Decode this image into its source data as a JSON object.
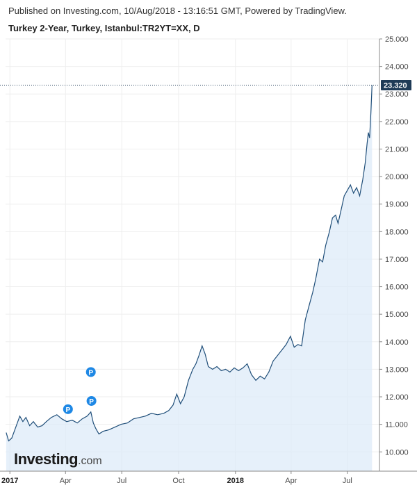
{
  "header": {
    "published": "Published on Investing.com, 10/Aug/2018 - 13:16:51 GMT, Powered by TradingView.",
    "symbol": "Turkey 2-Year, Turkey, Istanbul:TR2YT=XX, D"
  },
  "logo": {
    "main": "Investing",
    "suffix": ".com"
  },
  "colors": {
    "line": "#1f4e79",
    "fill": "#dbeaf8",
    "badge": "#1e88e5",
    "grid": "#eeeeee",
    "price_label_bg": "#1f3b57"
  },
  "chart_data": {
    "type": "area",
    "ylim": [
      9.3,
      25.0
    ],
    "y_ticks": [
      "10.000",
      "11.000",
      "12.000",
      "13.000",
      "14.000",
      "15.000",
      "16.000",
      "17.000",
      "18.000",
      "19.000",
      "20.000",
      "21.000",
      "22.000",
      "23.000",
      "24.000",
      "25.000"
    ],
    "x_ticks": [
      {
        "label": "2017",
        "x": "2017-01-01",
        "bold": true
      },
      {
        "label": "Apr",
        "x": "2017-04-01",
        "bold": false
      },
      {
        "label": "Jul",
        "x": "2017-07-01",
        "bold": false
      },
      {
        "label": "Oct",
        "x": "2017-10-01",
        "bold": false
      },
      {
        "label": "2018",
        "x": "2018-01-01",
        "bold": true
      },
      {
        "label": "Apr",
        "x": "2018-04-01",
        "bold": false
      },
      {
        "label": "Jul",
        "x": "2018-07-01",
        "bold": false
      }
    ],
    "xlim": [
      "2016-12-25",
      "2018-08-22"
    ],
    "last_value": "23.320",
    "series": [
      {
        "points": [
          [
            "2016-12-26",
            10.7
          ],
          [
            "2016-12-30",
            10.4
          ],
          [
            "2017-01-04",
            10.5
          ],
          [
            "2017-01-09",
            10.8
          ],
          [
            "2017-01-13",
            11.05
          ],
          [
            "2017-01-17",
            11.3
          ],
          [
            "2017-01-22",
            11.1
          ],
          [
            "2017-01-27",
            11.25
          ],
          [
            "2017-02-02",
            10.95
          ],
          [
            "2017-02-08",
            11.1
          ],
          [
            "2017-02-15",
            10.9
          ],
          [
            "2017-02-22",
            10.95
          ],
          [
            "2017-03-01",
            11.1
          ],
          [
            "2017-03-09",
            11.25
          ],
          [
            "2017-03-18",
            11.35
          ],
          [
            "2017-03-26",
            11.2
          ],
          [
            "2017-04-03",
            11.1
          ],
          [
            "2017-04-12",
            11.15
          ],
          [
            "2017-04-20",
            11.05
          ],
          [
            "2017-04-28",
            11.2
          ],
          [
            "2017-05-06",
            11.3
          ],
          [
            "2017-05-12",
            11.45
          ],
          [
            "2017-05-16",
            11.05
          ],
          [
            "2017-05-20",
            10.85
          ],
          [
            "2017-05-25",
            10.65
          ],
          [
            "2017-06-01",
            10.75
          ],
          [
            "2017-06-10",
            10.8
          ],
          [
            "2017-06-20",
            10.9
          ],
          [
            "2017-06-30",
            11.0
          ],
          [
            "2017-07-10",
            11.05
          ],
          [
            "2017-07-20",
            11.2
          ],
          [
            "2017-07-30",
            11.25
          ],
          [
            "2017-08-08",
            11.3
          ],
          [
            "2017-08-18",
            11.4
          ],
          [
            "2017-08-28",
            11.35
          ],
          [
            "2017-09-07",
            11.4
          ],
          [
            "2017-09-15",
            11.5
          ],
          [
            "2017-09-22",
            11.7
          ],
          [
            "2017-09-28",
            12.1
          ],
          [
            "2017-10-04",
            11.75
          ],
          [
            "2017-10-10",
            12.0
          ],
          [
            "2017-10-17",
            12.6
          ],
          [
            "2017-10-24",
            13.0
          ],
          [
            "2017-10-29",
            13.2
          ],
          [
            "2017-11-03",
            13.5
          ],
          [
            "2017-11-08",
            13.85
          ],
          [
            "2017-11-13",
            13.55
          ],
          [
            "2017-11-18",
            13.1
          ],
          [
            "2017-11-25",
            13.0
          ],
          [
            "2017-12-02",
            13.1
          ],
          [
            "2017-12-09",
            12.95
          ],
          [
            "2017-12-16",
            13.0
          ],
          [
            "2017-12-23",
            12.9
          ],
          [
            "2017-12-30",
            13.05
          ],
          [
            "2018-01-06",
            12.95
          ],
          [
            "2018-01-13",
            13.05
          ],
          [
            "2018-01-20",
            13.2
          ],
          [
            "2018-01-27",
            12.8
          ],
          [
            "2018-02-03",
            12.6
          ],
          [
            "2018-02-10",
            12.75
          ],
          [
            "2018-02-17",
            12.65
          ],
          [
            "2018-02-24",
            12.9
          ],
          [
            "2018-03-03",
            13.3
          ],
          [
            "2018-03-10",
            13.5
          ],
          [
            "2018-03-17",
            13.7
          ],
          [
            "2018-03-24",
            13.9
          ],
          [
            "2018-03-31",
            14.2
          ],
          [
            "2018-04-06",
            13.8
          ],
          [
            "2018-04-12",
            13.9
          ],
          [
            "2018-04-18",
            13.85
          ],
          [
            "2018-04-24",
            14.8
          ],
          [
            "2018-04-30",
            15.3
          ],
          [
            "2018-05-06",
            15.8
          ],
          [
            "2018-05-11",
            16.3
          ],
          [
            "2018-05-17",
            17.0
          ],
          [
            "2018-05-22",
            16.9
          ],
          [
            "2018-05-27",
            17.5
          ],
          [
            "2018-06-02",
            18.0
          ],
          [
            "2018-06-07",
            18.5
          ],
          [
            "2018-06-12",
            18.6
          ],
          [
            "2018-06-16",
            18.3
          ],
          [
            "2018-06-21",
            18.8
          ],
          [
            "2018-06-26",
            19.3
          ],
          [
            "2018-07-01",
            19.5
          ],
          [
            "2018-07-06",
            19.7
          ],
          [
            "2018-07-11",
            19.4
          ],
          [
            "2018-07-16",
            19.6
          ],
          [
            "2018-07-21",
            19.3
          ],
          [
            "2018-07-26",
            19.9
          ],
          [
            "2018-07-30",
            20.5
          ],
          [
            "2018-08-02",
            21.2
          ],
          [
            "2018-08-04",
            21.6
          ],
          [
            "2018-08-06",
            21.4
          ],
          [
            "2018-08-08",
            22.3
          ],
          [
            "2018-08-10",
            23.32
          ]
        ]
      }
    ],
    "annotations": [
      {
        "label": "P",
        "x": "2017-05-12",
        "y": 12.9
      },
      {
        "label": "P",
        "x": "2017-05-13",
        "y": 11.85
      },
      {
        "label": "P",
        "x": "2017-04-05",
        "y": 11.55
      }
    ]
  }
}
